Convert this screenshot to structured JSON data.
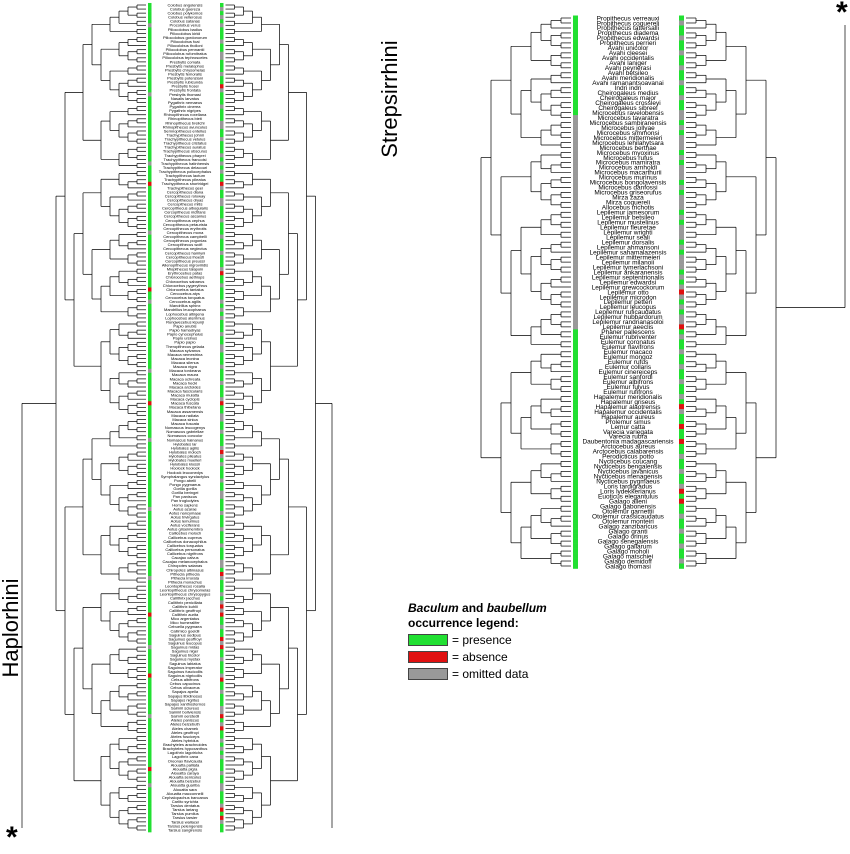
{
  "labels": {
    "left_clade": "Haplorhini",
    "right_clade": "Strepsirrhini",
    "left_root_marker": "*",
    "right_root_marker": "*"
  },
  "legend": {
    "title_italic_1": "Baculum",
    "title_mid": " and ",
    "title_italic_2": "baubellum",
    "title_line2": "occurrence legend:",
    "items": [
      {
        "label": "= presence",
        "color": "#22e032"
      },
      {
        "label": "= absence",
        "color": "#e01010"
      },
      {
        "label": "= omitted data",
        "color": "#999999"
      }
    ]
  },
  "colors": {
    "presence": "#22e032",
    "absence": "#e01010",
    "omitted": "#999999",
    "line": "#000000"
  },
  "haplorhini_taxa": [
    "Colobus angolensis",
    "Colobus guereza",
    "Colobus polykomos",
    "Colobus vellerosus",
    "Colobus satanas",
    "Procolobus verus",
    "Piliocolobus badius",
    "Piliocolobus kirkii",
    "Piliocolobus gordonorum",
    "Piliocolobus foai",
    "Piliocolobus tholloni",
    "Piliocolobus pennantii",
    "Piliocolobus rufomitratus",
    "Piliocolobus tephrosceles",
    "Presbytis comata",
    "Presbytis melalophos",
    "Presbytis chrysomelas",
    "Presbytis femoralis",
    "Presbytis potenziani",
    "Presbytis rubicunda",
    "Presbytis hosei",
    "Presbytis frontata",
    "Presbytis thomasi",
    "Nasalis larvatus",
    "Pygathrix nemaeus",
    "Pygathrix cinerea",
    "Pygathrix nigripes",
    "Rhinopithecus roxellana",
    "Rhinopithecus bieti",
    "Rhinopithecus brelichi",
    "Rhinopithecus avunculus",
    "Semnopithecus entellus",
    "Trachypithecus johnii",
    "Trachypithecus vetulus",
    "Trachypithecus cristatus",
    "Trachypithecus auratus",
    "Trachypithecus obscurus",
    "Trachypithecus phayrei",
    "Trachypithecus francoisi",
    "Trachypithecus hatinhensis",
    "Trachypithecus delacouri",
    "Trachypithecus poliocephalus",
    "Trachypithecus laotum",
    "Trachypithecus pileatus",
    "Trachypithecus shortridgei",
    "Trachypithecus geei",
    "Cercopithecus diana",
    "Cercopithecus roloway",
    "Cercopithecus dryas",
    "Cercopithecus mitis",
    "Cercopithecus albogularis",
    "Cercopithecus nictitans",
    "Cercopithecus ascanius",
    "Cercopithecus cephus",
    "Cercopithecus petaurista",
    "Cercopithecus erythrotis",
    "Cercopithecus mona",
    "Cercopithecus campbelli",
    "Cercopithecus pogonias",
    "Cercopithecus wolfi",
    "Cercopithecus neglectus",
    "Cercopithecus hamlyni",
    "Cercopithecus lhoesti",
    "Cercopithecus preussi",
    "Allenopithecus nigroviridis",
    "Miopithecus talapoin",
    "Erythrocebus patas",
    "Chlorocebus aethiops",
    "Chlorocebus sabaeus",
    "Chlorocebus pygerythrus",
    "Chlorocebus tantalus",
    "Cercocebus atys",
    "Cercocebus torquatus",
    "Cercocebus agilis",
    "Mandrillus sphinx",
    "Mandrillus leucophaeus",
    "Lophocebus albigena",
    "Lophocebus aterrimus",
    "Rungwecebus kipunji",
    "Papio anubis",
    "Papio hamadryas",
    "Papio cynocephalus",
    "Papio ursinus",
    "Papio papio",
    "Theropithecus gelada",
    "Macaca sylvanus",
    "Macaca nemestrina",
    "Macaca leonina",
    "Macaca silenus",
    "Macaca nigra",
    "Macaca tonkeana",
    "Macaca maura",
    "Macaca ochreata",
    "Macaca hecki",
    "Macaca arctoides",
    "Macaca fascicularis",
    "Macaca mulatta",
    "Macaca cyclopis",
    "Macaca fuscata",
    "Macaca thibetana",
    "Macaca assamensis",
    "Macaca radiata",
    "Macaca sinica",
    "Macaca fuscata",
    "Nomascus leucogenys",
    "Nomascus gabriellae",
    "Nomascus concolor",
    "Nomascus hainanus",
    "Hylobates lar",
    "Hylobates agilis",
    "Hylobates moloch",
    "Hylobates pileatus",
    "Hylobates muelleri",
    "Hylobates klossii",
    "Hoolock hoolock",
    "Hoolock leuconedys",
    "Symphalangus syndactylus",
    "Pongo abelii",
    "Pongo pygmaeus",
    "Gorilla gorilla",
    "Gorilla beringei",
    "Pan paniscus",
    "Pan troglodytes",
    "Homo sapiens",
    "Aotus azarae",
    "Aotus nancymaae",
    "Aotus trivirgatus",
    "Aotus lemurinus",
    "Aotus vociferans",
    "Aotus griseimembra",
    "Callicebus moloch",
    "Callicebus cupreus",
    "Callicebus donacophilus",
    "Callicebus torquatus",
    "Callicebus personatus",
    "Callicebus nigrifrons",
    "Cacajao calvus",
    "Cacajao melanocephalus",
    "Chiropotes satanas",
    "Chiropotes albinasus",
    "Pithecia pithecia",
    "Pithecia irrorata",
    "Pithecia monachus",
    "Leontopithecus rosalia",
    "Leontopithecus chrysomelas",
    "Leontopithecus chrysopygus",
    "Callithrix jacchus",
    "Callithrix penicillata",
    "Callithrix kuhlii",
    "Callithrix geoffroyi",
    "Callithrix aurita",
    "Mico argentatus",
    "Mico humeralifer",
    "Cebuella pygmaea",
    "Callimico goeldii",
    "Saguinus oedipus",
    "Saguinus geoffroyi",
    "Saguinus leucopus",
    "Saguinus midas",
    "Saguinus niger",
    "Saguinus bicolor",
    "Saguinus mystax",
    "Saguinus labiatus",
    "Saguinus imperator",
    "Saguinus fuscicollis",
    "Saguinus nigricollis",
    "Cebus albifrons",
    "Cebus capucinus",
    "Cebus olivaceus",
    "Sapajus apella",
    "Sapajus libidinosus",
    "Sapajus nigritus",
    "Sapajus xanthosternos",
    "Saimiri sciureus",
    "Saimiri boliviensis",
    "Saimiri oerstedii",
    "Ateles paniscus",
    "Ateles belzebuth",
    "Ateles chamek",
    "Ateles geoffroyi",
    "Ateles fusciceps",
    "Ateles hybridus",
    "Brachyteles arachnoides",
    "Brachyteles hypoxanthus",
    "Lagothrix lagotricha",
    "Lagothrix cana",
    "Oreonax flavicauda",
    "Alouatta palliata",
    "Alouatta pigra",
    "Alouatta caraya",
    "Alouatta seniculus",
    "Alouatta belzebul",
    "Alouatta guariba",
    "Alouatta sara",
    "Alouatta macconnelli",
    "Cephalopachus bancanus",
    "Carlito syrichta",
    "Tarsius dentatus",
    "Tarsius lariang",
    "Tarsius pumilus",
    "Tarsius tarsier",
    "Tarsius wallacei",
    "Tarsius pelengensis",
    "Tarsius sangirensis"
  ],
  "strepsirrhini_taxa": [
    "Propithecus verreauxi",
    "Propithecus coquereli",
    "Propithecus tattersalli",
    "Propithecus diadema",
    "Propithecus edwardsi",
    "Propithecus perrieri",
    "Avahi unicolor",
    "Avahi cleesei",
    "Avahi occidentalis",
    "Avahi laniger",
    "Avahi peyrierasi",
    "Avahi betsileo",
    "Avahi meridionalis",
    "Avahi ramanantsoavanai",
    "Indri indri",
    "Cheirogaleus medius",
    "Cheirogaleus major",
    "Cheirogaleus crossleyi",
    "Cheirogaleus sibreei",
    "Microcebus ravelobensis",
    "Microcebus tavaratra",
    "Microcebus sambiranensis",
    "Microcebus jollyae",
    "Microcebus simmonsi",
    "Microcebus mittermeieri",
    "Microcebus lehilahytsara",
    "Microcebus berthae",
    "Microcebus myoxinus",
    "Microcebus rufus",
    "Microcebus mamiratra",
    "Microcebus arnholdi",
    "Microcebus macarthurii",
    "Microcebus murinus",
    "Microcebus bongolavensis",
    "Microcebus danfossi",
    "Microcebus griseorufus",
    "Mirza zaza",
    "Mirza coquereli",
    "Allocebus trichotis",
    "Lepilemur jamesorum",
    "Lepilemur betsileo",
    "Lepilemur mustelinus",
    "Lepilemur fleuretae",
    "Lepilemur wrighti",
    "Lepilemur seali",
    "Lepilemur dorsalis",
    "Lepilemur ahmansoni",
    "Lepilemur sahamalazensis",
    "Lepilemur mittermeieri",
    "Lepilemur milanoii",
    "Lepilemur tymerlachsoni",
    "Lepilemur ankaranensis",
    "Lepilemur septentrionalis",
    "Lepilemur edwardsi",
    "Lepilemur grewcockorum",
    "Lepilemur otto",
    "Lepilemur microdon",
    "Lepilemur petteri",
    "Lepilemur leucopus",
    "Lepilemur ruficaudatus",
    "Lepilemur hubbardorum",
    "Lepilemur randrianasoloi",
    "Lepilemur aeeclis",
    "Phaner pallescens",
    "Eulemur rubriventer",
    "Eulemur coronatus",
    "Eulemur flavifrons",
    "Eulemur macaco",
    "Eulemur mongoz",
    "Eulemur rufus",
    "Eulemur collaris",
    "Eulemur cinereiceps",
    "Eulemur sanfordi",
    "Eulemur albifrons",
    "Eulemur fulvus",
    "Eulemur rufifrons",
    "Hapalemur meridionalis",
    "Hapalemur griseus",
    "Hapalemur alaotrensis",
    "Hapalemur occidentalis",
    "Hapalemur aureus",
    "Prolemur simus",
    "Lemur catta",
    "Varecia variegata",
    "Varecia rubra",
    "Daubentonia madagascariensis",
    "Arctocebus aureus",
    "Arctocebus calabarensis",
    "Perodicticus potto",
    "Nycticebus coucang",
    "Nycticebus bengalensis",
    "Nycticebus javanicus",
    "Nycticebus menagensis",
    "Nycticebus pygmaeus",
    "Loris tardigradus",
    "Loris lydekkerianus",
    "Euoticus elegantulus",
    "Galago alleni",
    "Galago gabonensis",
    "Otolemur garnettii",
    "Otolemur crassicaudatus",
    "Otolemur monteiri",
    "Galago zanzibaricus",
    "Galago granti",
    "Galago orinus",
    "Galago senegalensis",
    "Galago gallarum",
    "Galago moholi",
    "Galago matschiei",
    "Galago demidoff",
    "Galago thomasi"
  ],
  "occurrence": {
    "haplorhini_baculum_absent": [
      44,
      70,
      98,
      150,
      165,
      188,
      205,
      218,
      224
    ],
    "haplorhini_baubellum_absent": [
      20,
      44,
      66,
      98,
      110,
      140,
      148,
      150,
      156,
      158,
      166,
      175,
      178,
      198,
      200,
      206,
      218,
      222
    ],
    "strepsirrhini_baubellum_absent": [
      55,
      62,
      78,
      82,
      85,
      95,
      97
    ]
  }
}
